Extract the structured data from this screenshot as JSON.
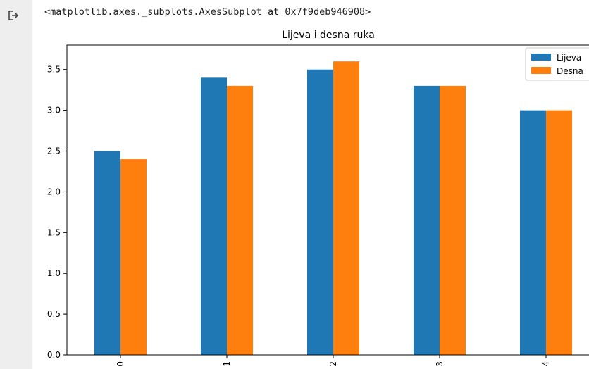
{
  "output": {
    "repr_text": "<matplotlib.axes._subplots.AxesSubplot at 0x7f9deb946908>"
  },
  "colors": {
    "series_1": "#1f77b4",
    "series_2": "#ff7f0e",
    "gutter": "#eeeeee"
  },
  "icons": {
    "output": "output-arrow-icon"
  },
  "chart_data": {
    "type": "bar",
    "title": "Lijeva i desna ruka",
    "xlabel": "",
    "ylabel": "",
    "categories": [
      "0",
      "1",
      "2",
      "3",
      "4"
    ],
    "series": [
      {
        "name": "Lijeva",
        "values": [
          2.5,
          3.4,
          3.5,
          3.3,
          3.0
        ]
      },
      {
        "name": "Desna",
        "values": [
          2.4,
          3.3,
          3.6,
          3.3,
          3.0
        ]
      }
    ],
    "ylim": [
      0,
      3.8
    ],
    "yticks": [
      "0.0",
      "0.5",
      "1.0",
      "1.5",
      "2.0",
      "2.5",
      "3.0",
      "3.5"
    ],
    "ytick_values": [
      0,
      0.5,
      1.0,
      1.5,
      2.0,
      2.5,
      3.0,
      3.5
    ],
    "xtick_rotation": 90,
    "legend_position": "top-right",
    "grid": false
  }
}
